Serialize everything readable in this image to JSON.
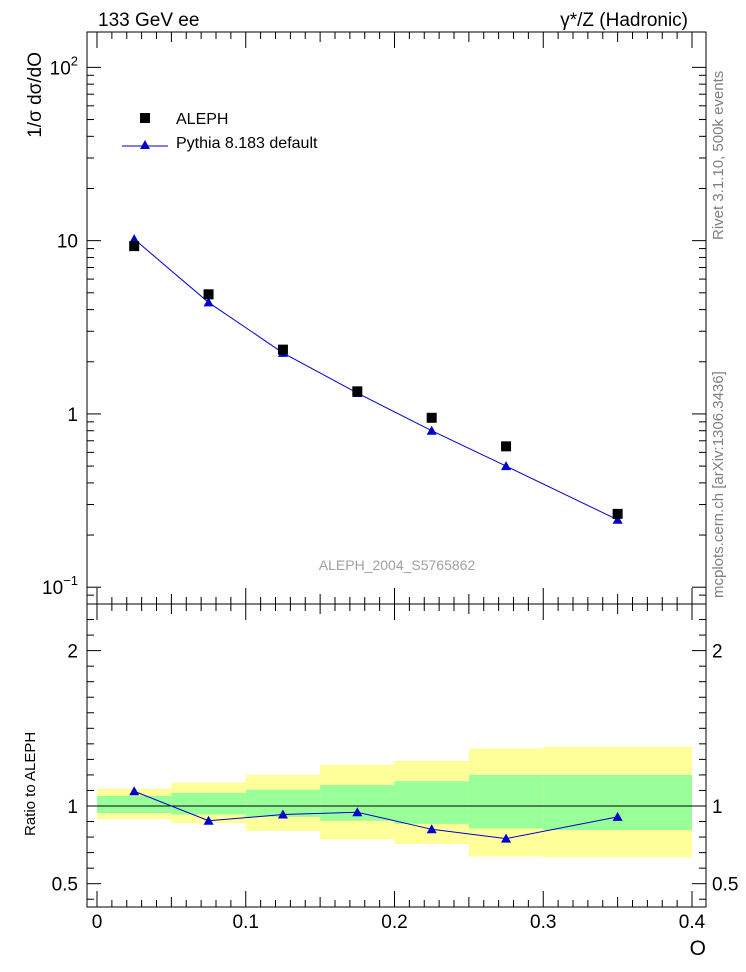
{
  "header": {
    "left": "133 GeV ee",
    "right": "γ*/Z (Hadronic)"
  },
  "side": {
    "rivet": "Rivet 3.1.10,  500k events",
    "mcplots": "mcplots.cern.ch [arXiv:1306.3436]"
  },
  "chart_data": [
    {
      "type": "scatter",
      "panel": "main",
      "yscale": "log",
      "ylabel": "1/σ  dσ/dO",
      "xlabel": "O",
      "xlim": [
        0,
        0.4
      ],
      "ylim": [
        0.08,
        160
      ],
      "yticks": [
        {
          "v": 0.1,
          "base": "10",
          "exp": "−1"
        },
        {
          "v": 1,
          "base": "1",
          "exp": ""
        },
        {
          "v": 10,
          "base": "10",
          "exp": ""
        },
        {
          "v": 100,
          "base": "10",
          "exp": "2"
        }
      ],
      "watermark": "ALEPH_2004_S5765862",
      "legend": {
        "position": "top-left",
        "entries": [
          "ALEPH",
          "Pythia 8.183 default"
        ]
      },
      "series": [
        {
          "name": "ALEPH",
          "marker": "square",
          "color": "#000000",
          "x": [
            0.025,
            0.075,
            0.125,
            0.175,
            0.225,
            0.275,
            0.35
          ],
          "y": [
            9.3,
            4.9,
            2.35,
            1.35,
            0.95,
            0.65,
            0.265
          ]
        },
        {
          "name": "Pythia 8.183 default",
          "marker": "triangle",
          "color": "#0000cc",
          "x": [
            0.025,
            0.075,
            0.125,
            0.175,
            0.225,
            0.275,
            0.35
          ],
          "y": [
            10.2,
            4.4,
            2.25,
            1.32,
            0.8,
            0.5,
            0.245
          ]
        }
      ]
    },
    {
      "type": "line",
      "panel": "ratio",
      "ylabel": "Ratio to ALEPH",
      "xlabel": "O",
      "xlim": [
        0,
        0.4
      ],
      "ylim": [
        0.35,
        2.3
      ],
      "yticks": [
        0.5,
        1,
        2
      ],
      "xticks": [
        {
          "v": 0,
          "label": "0"
        },
        {
          "v": 0.1,
          "label": "0.1"
        },
        {
          "v": 0.2,
          "label": "0.2"
        },
        {
          "v": 0.3,
          "label": "0.3"
        },
        {
          "v": 0.4,
          "label": "0.4"
        }
      ],
      "bands": [
        {
          "xlo": 0.0,
          "xhi": 0.05,
          "stat": [
            0.955,
            1.065
          ],
          "total": [
            0.915,
            1.11
          ]
        },
        {
          "xlo": 0.05,
          "xhi": 0.1,
          "stat": [
            0.945,
            1.085
          ],
          "total": [
            0.89,
            1.15
          ]
        },
        {
          "xlo": 0.1,
          "xhi": 0.15,
          "stat": [
            0.93,
            1.105
          ],
          "total": [
            0.84,
            1.2
          ]
        },
        {
          "xlo": 0.15,
          "xhi": 0.2,
          "stat": [
            0.905,
            1.135
          ],
          "total": [
            0.785,
            1.265
          ]
        },
        {
          "xlo": 0.2,
          "xhi": 0.25,
          "stat": [
            0.885,
            1.16
          ],
          "total": [
            0.755,
            1.29
          ]
        },
        {
          "xlo": 0.25,
          "xhi": 0.3,
          "stat": [
            0.855,
            1.2
          ],
          "total": [
            0.675,
            1.37
          ]
        },
        {
          "xlo": 0.3,
          "xhi": 0.4,
          "stat": [
            0.845,
            1.2
          ],
          "total": [
            0.67,
            1.38
          ]
        }
      ],
      "series": [
        {
          "name": "Pythia 8.183 default",
          "color": "#0000cc",
          "x": [
            0.025,
            0.075,
            0.125,
            0.175,
            0.225,
            0.275,
            0.35
          ],
          "y": [
            1.095,
            0.905,
            0.945,
            0.96,
            0.85,
            0.79,
            0.93
          ]
        }
      ]
    }
  ]
}
